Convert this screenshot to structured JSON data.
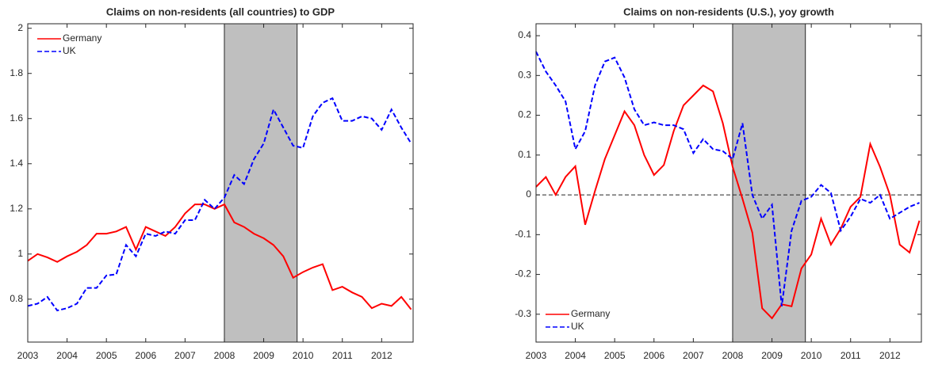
{
  "chart_data": [
    {
      "type": "line",
      "title": "Claims on non-residents (all countries) to GDP",
      "x": [
        2003,
        2003.25,
        2003.5,
        2003.75,
        2004,
        2004.25,
        2004.5,
        2004.75,
        2005,
        2005.25,
        2005.5,
        2005.75,
        2006,
        2006.25,
        2006.5,
        2006.75,
        2007,
        2007.25,
        2007.5,
        2007.75,
        2008,
        2008.25,
        2008.5,
        2008.75,
        2009,
        2009.25,
        2009.5,
        2009.75,
        2010,
        2010.25,
        2010.5,
        2010.75,
        2011,
        2011.25,
        2011.5,
        2011.75,
        2012,
        2012.25,
        2012.5,
        2012.75
      ],
      "series": [
        {
          "name": "Germany",
          "color": "#ff0000",
          "dashed": false,
          "values": [
            0.97,
            1.0,
            0.985,
            0.965,
            0.99,
            1.01,
            1.04,
            1.09,
            1.09,
            1.1,
            1.12,
            1.02,
            1.12,
            1.1,
            1.08,
            1.12,
            1.18,
            1.22,
            1.22,
            1.2,
            1.22,
            1.14,
            1.12,
            1.09,
            1.07,
            1.04,
            0.99,
            0.895,
            0.92,
            0.94,
            0.955,
            0.84,
            0.855,
            0.83,
            0.81,
            0.76,
            0.78,
            0.77,
            0.81,
            0.755
          ]
        },
        {
          "name": "UK",
          "color": "#0000ff",
          "dashed": true,
          "values": [
            0.77,
            0.78,
            0.81,
            0.75,
            0.76,
            0.78,
            0.85,
            0.85,
            0.905,
            0.91,
            1.04,
            0.99,
            1.09,
            1.08,
            1.1,
            1.09,
            1.15,
            1.15,
            1.24,
            1.2,
            1.25,
            1.35,
            1.31,
            1.42,
            1.49,
            1.64,
            1.56,
            1.48,
            1.47,
            1.61,
            1.67,
            1.69,
            1.59,
            1.59,
            1.61,
            1.6,
            1.55,
            1.64,
            1.56,
            1.49
          ]
        }
      ],
      "xlim": [
        2003,
        2012.8
      ],
      "xticks": [
        2003,
        2004,
        2005,
        2006,
        2007,
        2008,
        2009,
        2010,
        2011,
        2012
      ],
      "ylim": [
        0.61,
        2.02
      ],
      "yticks": [
        0.8,
        1,
        1.2,
        1.4,
        1.6,
        1.8,
        2
      ],
      "shaded_region": [
        2008,
        2009.85
      ],
      "zero_line": false,
      "legend": "upper-left"
    },
    {
      "type": "line",
      "title": "Claims on non-residents (U.S.), yoy growth",
      "x": [
        2003,
        2003.25,
        2003.5,
        2003.75,
        2004,
        2004.25,
        2004.5,
        2004.75,
        2005,
        2005.25,
        2005.5,
        2005.75,
        2006,
        2006.25,
        2006.5,
        2006.75,
        2007,
        2007.25,
        2007.5,
        2007.75,
        2008,
        2008.25,
        2008.5,
        2008.75,
        2009,
        2009.25,
        2009.5,
        2009.75,
        2010,
        2010.25,
        2010.5,
        2010.75,
        2011,
        2011.25,
        2011.5,
        2011.75,
        2012,
        2012.25,
        2012.5,
        2012.75
      ],
      "series": [
        {
          "name": "Germany",
          "color": "#ff0000",
          "dashed": false,
          "values": [
            0.02,
            0.045,
            0.0,
            0.045,
            0.072,
            -0.075,
            0.01,
            0.09,
            0.15,
            0.21,
            0.175,
            0.1,
            0.05,
            0.075,
            0.16,
            0.225,
            0.25,
            0.275,
            0.26,
            0.18,
            0.07,
            -0.01,
            -0.095,
            -0.285,
            -0.31,
            -0.275,
            -0.28,
            -0.185,
            -0.15,
            -0.06,
            -0.125,
            -0.085,
            -0.03,
            -0.005,
            0.128,
            0.07,
            0.0,
            -0.125,
            -0.145,
            -0.065
          ]
        },
        {
          "name": "UK",
          "color": "#0000ff",
          "dashed": true,
          "values": [
            0.36,
            0.31,
            0.275,
            0.235,
            0.115,
            0.16,
            0.275,
            0.335,
            0.345,
            0.295,
            0.215,
            0.175,
            0.182,
            0.175,
            0.175,
            0.165,
            0.105,
            0.14,
            0.115,
            0.11,
            0.09,
            0.18,
            0.0,
            -0.06,
            -0.025,
            -0.28,
            -0.09,
            -0.015,
            -0.005,
            0.025,
            0.005,
            -0.09,
            -0.055,
            -0.01,
            -0.02,
            0.0,
            -0.06,
            -0.045,
            -0.03,
            -0.02
          ]
        }
      ],
      "xlim": [
        2003,
        2012.8
      ],
      "xticks": [
        2003,
        2004,
        2005,
        2006,
        2007,
        2008,
        2009,
        2010,
        2011,
        2012
      ],
      "ylim": [
        -0.37,
        0.43
      ],
      "yticks": [
        -0.3,
        -0.2,
        -0.1,
        0,
        0.1,
        0.2,
        0.3,
        0.4
      ],
      "shaded_region": [
        2008,
        2009.85
      ],
      "zero_line": true,
      "legend": "lower-left"
    }
  ]
}
